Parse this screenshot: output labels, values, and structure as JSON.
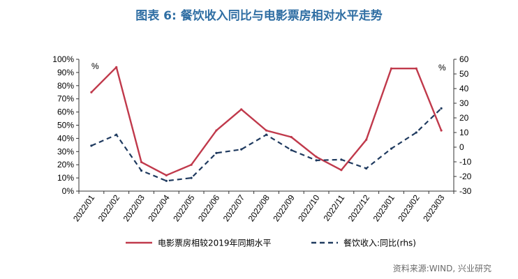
{
  "title": "图表 6:  餐饮收入同比与电影票房相对水平走势",
  "source": "资料来源:WIND, 兴业研究",
  "chart_data": {
    "type": "line",
    "categories": [
      "2022/01",
      "2022/02",
      "2022/03",
      "2022/04",
      "2022/05",
      "2022/06",
      "2022/07",
      "2022/08",
      "2022/09",
      "2022/10",
      "2022/11",
      "2022/12",
      "2023/01",
      "2023/02",
      "2023/03"
    ],
    "left_axis": {
      "unit": "%",
      "ylim": [
        0,
        100
      ],
      "ticks": [
        "0%",
        "10%",
        "20%",
        "30%",
        "40%",
        "50%",
        "60%",
        "70%",
        "80%",
        "90%",
        "100%"
      ]
    },
    "right_axis": {
      "unit": "%",
      "ylim": [
        -30,
        60
      ],
      "ticks": [
        "-30",
        "-20",
        "-10",
        "0",
        "10",
        "20",
        "30",
        "40",
        "50",
        "60"
      ]
    },
    "grid": false,
    "legend_placement": "bottom",
    "series": [
      {
        "name": "电影票房相较2019年同期水平",
        "axis": "left",
        "style": "solid",
        "color": "#c0394b",
        "values": [
          75,
          94,
          22,
          12,
          20,
          46,
          62,
          46,
          41,
          26,
          16,
          39,
          93,
          93,
          46
        ]
      },
      {
        "name": "餐饮收入:同比(rhs)",
        "axis": "right",
        "style": "dashed",
        "color": "#1f3a5f",
        "values": [
          1,
          8.5,
          -16,
          -23,
          -21,
          -4,
          -1.5,
          8.5,
          -2,
          -9,
          -8.5,
          -14.5,
          -1,
          10,
          26.5
        ]
      }
    ]
  }
}
